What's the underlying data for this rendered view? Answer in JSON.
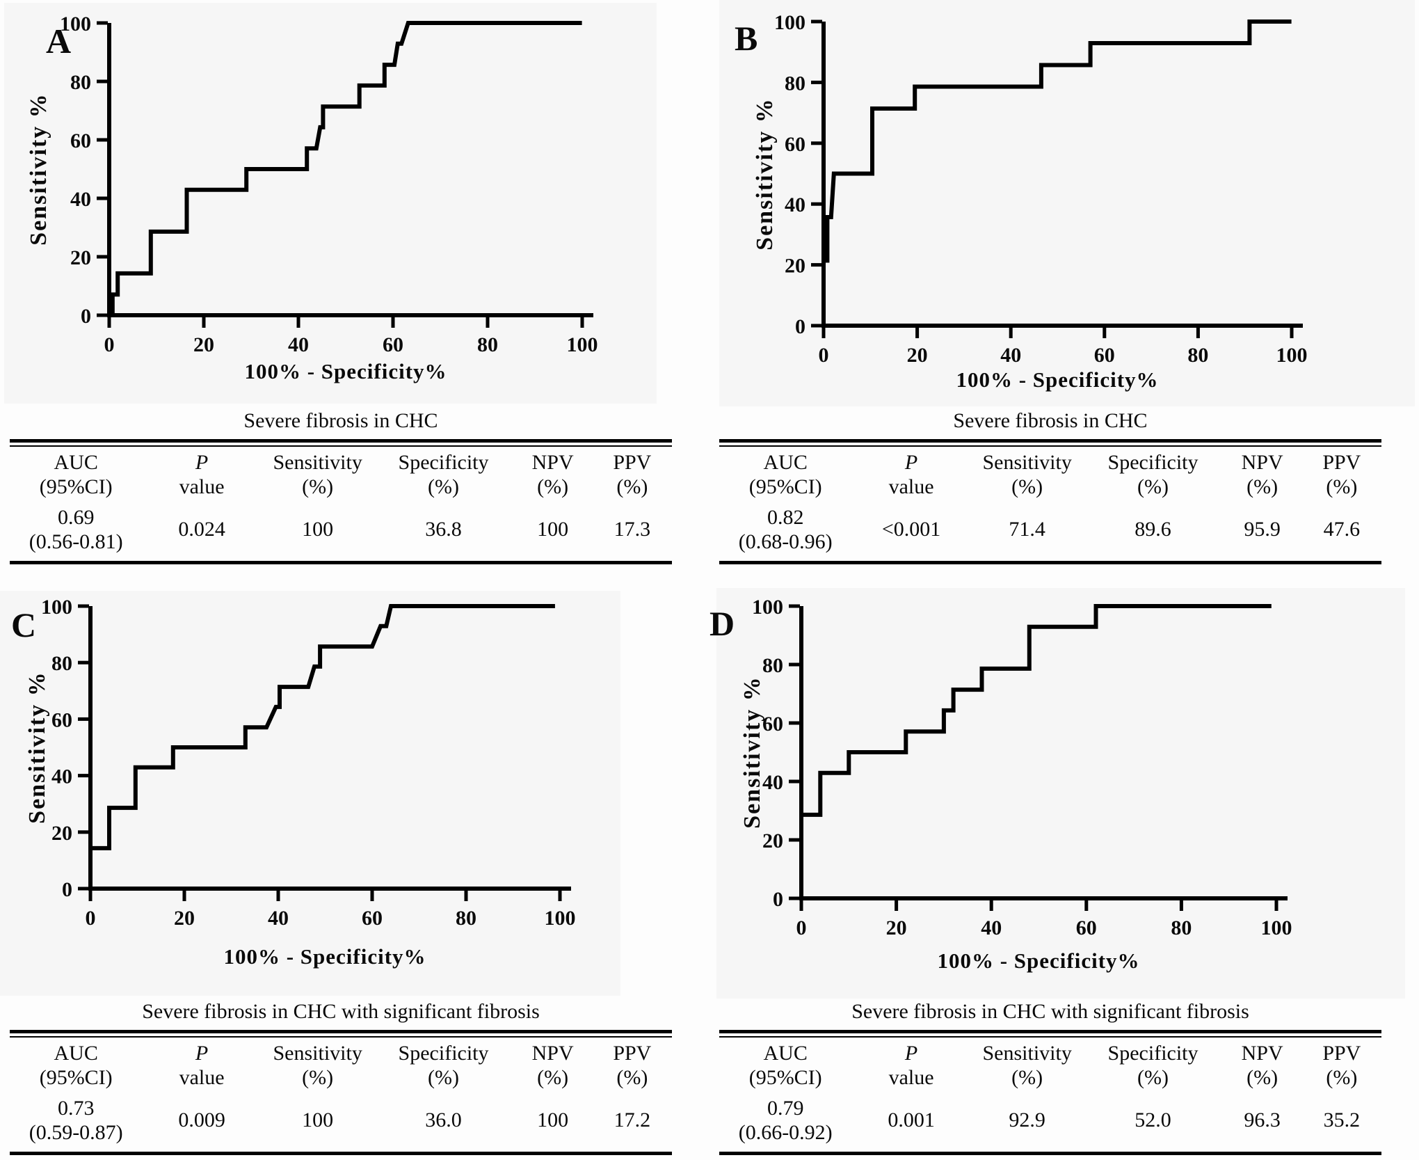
{
  "chart_data": [
    {
      "panel": "A",
      "type": "line",
      "subtype": "roc-step-curve",
      "xlabel": "100% - Specificity%",
      "ylabel": "Sensitivity %",
      "xlim": [
        0,
        100
      ],
      "ylim": [
        0,
        100
      ],
      "xticks": [
        0,
        20,
        40,
        60,
        80,
        100
      ],
      "yticks": [
        0,
        20,
        40,
        60,
        80,
        100
      ],
      "series": [
        {
          "name": "ROC curve",
          "points": [
            [
              0,
              0
            ],
            [
              0.7,
              0
            ],
            [
              0.7,
              7.1
            ],
            [
              1.8,
              7.1
            ],
            [
              1.8,
              14.3
            ],
            [
              8.8,
              14.3
            ],
            [
              8.8,
              28.6
            ],
            [
              16.4,
              28.6
            ],
            [
              16.4,
              42.9
            ],
            [
              29,
              42.9
            ],
            [
              29,
              50
            ],
            [
              41.8,
              50
            ],
            [
              41.8,
              57.1
            ],
            [
              43.8,
              57.1
            ],
            [
              44.6,
              64.3
            ],
            [
              45.2,
              64.3
            ],
            [
              45.2,
              71.4
            ],
            [
              52.9,
              71.4
            ],
            [
              52.9,
              78.6
            ],
            [
              58.2,
              78.6
            ],
            [
              58.2,
              85.7
            ],
            [
              60.3,
              85.7
            ],
            [
              61,
              92.9
            ],
            [
              61.8,
              92.9
            ],
            [
              63.2,
              100
            ],
            [
              99.5,
              100
            ]
          ]
        }
      ],
      "table": {
        "title": "Severe fibrosis in CHC",
        "headers": [
          [
            "AUC",
            "(95%CI)"
          ],
          [
            "P",
            "value"
          ],
          [
            "Sensitivity",
            "(%)"
          ],
          [
            "Specificity",
            "(%)"
          ],
          [
            "NPV",
            "(%)"
          ],
          [
            "PPV",
            "(%)"
          ]
        ],
        "row": [
          [
            "0.69",
            "(0.56-0.81)"
          ],
          "0.024",
          "100",
          "36.8",
          "100",
          "17.3"
        ]
      }
    },
    {
      "panel": "B",
      "type": "line",
      "subtype": "roc-step-curve",
      "xlabel": "100% - Specificity%",
      "ylabel": "Sensitivity %",
      "xlim": [
        0,
        100
      ],
      "ylim": [
        0,
        100
      ],
      "xticks": [
        0,
        20,
        40,
        60,
        80,
        100
      ],
      "yticks": [
        0,
        20,
        40,
        60,
        80,
        100
      ],
      "series": [
        {
          "name": "ROC curve",
          "points": [
            [
              0,
              0
            ],
            [
              0,
              21.4
            ],
            [
              0.8,
              21.4
            ],
            [
              0.8,
              35.7
            ],
            [
              1.6,
              35.7
            ],
            [
              2.2,
              50
            ],
            [
              10.4,
              50
            ],
            [
              10.4,
              71.4
            ],
            [
              19.5,
              71.4
            ],
            [
              19.5,
              78.6
            ],
            [
              46.5,
              78.6
            ],
            [
              46.5,
              85.7
            ],
            [
              57,
              85.7
            ],
            [
              57,
              92.9
            ],
            [
              91,
              92.9
            ],
            [
              91,
              100
            ],
            [
              99.5,
              100
            ]
          ]
        }
      ],
      "table": {
        "title": "Severe fibrosis in CHC",
        "headers": [
          [
            "AUC",
            "(95%CI)"
          ],
          [
            "P",
            "value"
          ],
          [
            "Sensitivity",
            "(%)"
          ],
          [
            "Specificity",
            "(%)"
          ],
          [
            "NPV",
            "(%)"
          ],
          [
            "PPV",
            "(%)"
          ]
        ],
        "row": [
          [
            "0.82",
            "(0.68-0.96)"
          ],
          "<0.001",
          "71.4",
          "89.6",
          "95.9",
          "47.6"
        ]
      }
    },
    {
      "panel": "C",
      "type": "line",
      "subtype": "roc-step-curve",
      "xlabel": "100% - Specificity%",
      "ylabel": "Sensitivity %",
      "xlim": [
        0,
        100
      ],
      "ylim": [
        0,
        100
      ],
      "xticks": [
        0,
        20,
        40,
        60,
        80,
        100
      ],
      "yticks": [
        0,
        20,
        40,
        60,
        80,
        100
      ],
      "series": [
        {
          "name": "ROC curve",
          "points": [
            [
              0,
              0
            ],
            [
              0,
              14.3
            ],
            [
              4,
              14.3
            ],
            [
              4,
              28.6
            ],
            [
              9.6,
              28.6
            ],
            [
              9.6,
              42.9
            ],
            [
              17.6,
              42.9
            ],
            [
              17.6,
              50
            ],
            [
              33,
              50
            ],
            [
              33,
              57.1
            ],
            [
              37.5,
              57.1
            ],
            [
              39.5,
              64.3
            ],
            [
              40.3,
              64.3
            ],
            [
              40.3,
              71.4
            ],
            [
              46.4,
              71.4
            ],
            [
              47.7,
              78.6
            ],
            [
              48.9,
              78.6
            ],
            [
              48.9,
              85.7
            ],
            [
              60,
              85.7
            ],
            [
              61.8,
              92.9
            ],
            [
              63,
              92.9
            ],
            [
              64,
              100
            ],
            [
              98.5,
              100
            ]
          ]
        }
      ],
      "table": {
        "title": "Severe fibrosis in CHC with significant fibrosis",
        "headers": [
          [
            "AUC",
            "(95%CI)"
          ],
          [
            "P",
            "value"
          ],
          [
            "Sensitivity",
            "(%)"
          ],
          [
            "Specificity",
            "(%)"
          ],
          [
            "NPV",
            "(%)"
          ],
          [
            "PPV",
            "(%)"
          ]
        ],
        "row": [
          [
            "0.73",
            "(0.59-0.87)"
          ],
          "0.009",
          "100",
          "36.0",
          "100",
          "17.2"
        ]
      }
    },
    {
      "panel": "D",
      "type": "line",
      "subtype": "roc-step-curve",
      "xlabel": "100% - Specificity%",
      "ylabel": "Sensitivity %",
      "xlim": [
        0,
        100
      ],
      "ylim": [
        0,
        100
      ],
      "xticks": [
        0,
        20,
        40,
        60,
        80,
        100
      ],
      "yticks": [
        0,
        20,
        40,
        60,
        80,
        100
      ],
      "series": [
        {
          "name": "ROC curve",
          "points": [
            [
              0,
              0
            ],
            [
              0,
              28.6
            ],
            [
              4,
              28.6
            ],
            [
              4,
              42.9
            ],
            [
              10,
              42.9
            ],
            [
              10,
              50
            ],
            [
              22,
              50
            ],
            [
              22,
              57.1
            ],
            [
              30,
              57.1
            ],
            [
              30,
              64.3
            ],
            [
              32,
              64.3
            ],
            [
              32,
              71.4
            ],
            [
              38,
              71.4
            ],
            [
              38,
              78.6
            ],
            [
              48,
              78.6
            ],
            [
              48,
              92.9
            ],
            [
              62,
              92.9
            ],
            [
              62,
              100
            ],
            [
              98.5,
              100
            ]
          ]
        }
      ],
      "table": {
        "title": "Severe fibrosis in CHC with significant fibrosis",
        "headers": [
          [
            "AUC",
            "(95%CI)"
          ],
          [
            "P",
            "value"
          ],
          [
            "Sensitivity",
            "(%)"
          ],
          [
            "Specificity",
            "(%)"
          ],
          [
            "NPV",
            "(%)"
          ],
          [
            "PPV",
            "(%)"
          ]
        ],
        "row": [
          [
            "0.79",
            "(0.66-0.92)"
          ],
          "0.001",
          "92.9",
          "52.0",
          "96.3",
          "35.2"
        ]
      }
    }
  ]
}
